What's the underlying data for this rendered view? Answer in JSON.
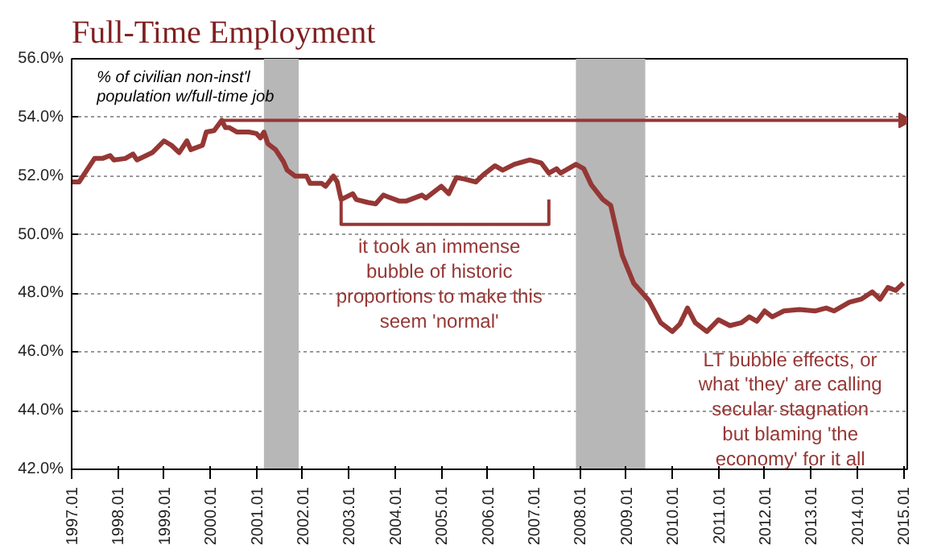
{
  "chart_data": {
    "type": "line",
    "title": "Full-Time Employment",
    "xlim": [
      "1997-01",
      "2015-02"
    ],
    "xticks": [
      {
        "value": "1997-01",
        "label": "1997.01"
      },
      {
        "value": "1998-01",
        "label": "1998.01"
      },
      {
        "value": "1999-01",
        "label": "1999.01"
      },
      {
        "value": "2000-01",
        "label": "2000.01"
      },
      {
        "value": "2001-01",
        "label": "2001.01"
      },
      {
        "value": "2002-01",
        "label": "2002.01"
      },
      {
        "value": "2003-01",
        "label": "2003.01"
      },
      {
        "value": "2004-01",
        "label": "2004.01"
      },
      {
        "value": "2005-01",
        "label": "2005.01"
      },
      {
        "value": "2006-01",
        "label": "2006.01"
      },
      {
        "value": "2007-01",
        "label": "2007.01"
      },
      {
        "value": "2008-01",
        "label": "2008.01"
      },
      {
        "value": "2009-01",
        "label": "2009.01"
      },
      {
        "value": "2010-01",
        "label": "2010.01"
      },
      {
        "value": "2011-01",
        "label": "2011.01"
      },
      {
        "value": "2012-01",
        "label": "2012.01"
      },
      {
        "value": "2013-01",
        "label": "2013.01"
      },
      {
        "value": "2014-01",
        "label": "2014.01"
      },
      {
        "value": "2015-01",
        "label": "2015.01"
      }
    ],
    "ylim": [
      42,
      56
    ],
    "yticks": [
      {
        "value": 42,
        "label": "42.0%"
      },
      {
        "value": 44,
        "label": "44.0%"
      },
      {
        "value": 46,
        "label": "46.0%"
      },
      {
        "value": 48,
        "label": "48.0%"
      },
      {
        "value": 50,
        "label": "50.0%"
      },
      {
        "value": 52,
        "label": "52.0%"
      },
      {
        "value": 54,
        "label": "54.0%"
      },
      {
        "value": 56,
        "label": "56.0%"
      }
    ],
    "grid": "y",
    "marker": "none",
    "line_style": "solid",
    "series": [
      {
        "color": "#953735",
        "x": [
          "1997-01",
          "1997-03",
          "1997-05",
          "1997-07",
          "1997-09",
          "1997-11",
          "1997-12",
          "1998-03",
          "1998-05",
          "1998-06",
          "1998-10",
          "1999-01",
          "1999-03",
          "1999-05",
          "1999-07",
          "1999-08",
          "1999-11",
          "1999-12",
          "2000-02",
          "2000-04",
          "2000-05",
          "2000-06",
          "2000-08",
          "2000-11",
          "2001-01",
          "2001-02",
          "2001-03",
          "2001-04",
          "2001-06",
          "2001-08",
          "2001-09",
          "2001-11",
          "2002-02",
          "2002-03",
          "2002-06",
          "2002-07",
          "2002-09",
          "2002-10",
          "2002-11",
          "2003-02",
          "2003-03",
          "2003-06",
          "2003-08",
          "2003-10",
          "2003-11",
          "2004-02",
          "2004-04",
          "2004-08",
          "2004-09",
          "2005-01",
          "2005-03",
          "2005-05",
          "2005-07",
          "2005-10",
          "2005-12",
          "2006-03",
          "2006-05",
          "2006-08",
          "2006-12",
          "2007-03",
          "2007-05",
          "2007-07",
          "2007-08",
          "2007-12",
          "2008-02",
          "2008-04",
          "2008-07",
          "2008-09",
          "2008-12",
          "2009-03",
          "2009-07",
          "2009-10",
          "2010-01",
          "2010-03",
          "2010-05",
          "2010-07",
          "2010-10",
          "2011-01",
          "2011-04",
          "2011-07",
          "2011-09",
          "2011-11",
          "2012-01",
          "2012-03",
          "2012-06",
          "2012-10",
          "2013-02",
          "2013-05",
          "2013-07",
          "2013-09",
          "2013-11",
          "2014-02",
          "2014-05",
          "2014-07",
          "2014-09",
          "2014-11",
          "2015-01"
        ],
        "values": [
          51.8,
          51.8,
          52.2,
          52.6,
          52.6,
          52.7,
          52.55,
          52.6,
          52.75,
          52.55,
          52.8,
          53.2,
          53.05,
          52.8,
          53.2,
          52.9,
          53.05,
          53.5,
          53.55,
          53.9,
          53.65,
          53.65,
          53.5,
          53.5,
          53.45,
          53.3,
          53.5,
          53.1,
          52.9,
          52.5,
          52.2,
          52.0,
          52.0,
          51.75,
          51.75,
          51.65,
          52.0,
          51.8,
          51.2,
          51.4,
          51.2,
          51.1,
          51.05,
          51.35,
          51.3,
          51.15,
          51.15,
          51.35,
          51.25,
          51.65,
          51.4,
          51.95,
          51.9,
          51.8,
          52.05,
          52.35,
          52.2,
          52.4,
          52.55,
          52.45,
          52.1,
          52.25,
          52.1,
          52.4,
          52.25,
          51.7,
          51.2,
          51.0,
          49.3,
          48.35,
          47.75,
          47.0,
          46.7,
          46.95,
          47.5,
          47.0,
          46.7,
          47.1,
          46.9,
          47.0,
          47.2,
          47.05,
          47.4,
          47.2,
          47.4,
          47.45,
          47.4,
          47.5,
          47.4,
          47.55,
          47.7,
          47.8,
          48.05,
          47.8,
          48.2,
          48.1,
          48.35
        ]
      },
      {
        "color": "#953735",
        "type": "line",
        "marker": "triangle",
        "x": [
          "2000-04",
          "2015-01"
        ],
        "values": [
          53.9,
          53.9
        ]
      },
      {
        "color": "#953735",
        "type": "line",
        "x": [
          "2002-11",
          "2002-11",
          "2007-05",
          "2007-05"
        ],
        "values": [
          51.2,
          50.35,
          50.35,
          51.2
        ]
      }
    ],
    "bands": [
      {
        "axis": "x",
        "from": "2001-03",
        "to": "2001-12",
        "color": "#b7b7b7"
      },
      {
        "axis": "x",
        "from": "2007-12",
        "to": "2009-06",
        "color": "#b7b7b7"
      }
    ],
    "annotations": [
      "% of civilian non-inst'l\npopulation w/full-time job",
      "it took an immense\nbubble of historic\nproportions to make this\nseem 'normal'",
      "LT bubble effects, or\nwhat 'they' are calling\nsecular stagnation\nbut blaming 'the\neconomy' for it all"
    ]
  }
}
